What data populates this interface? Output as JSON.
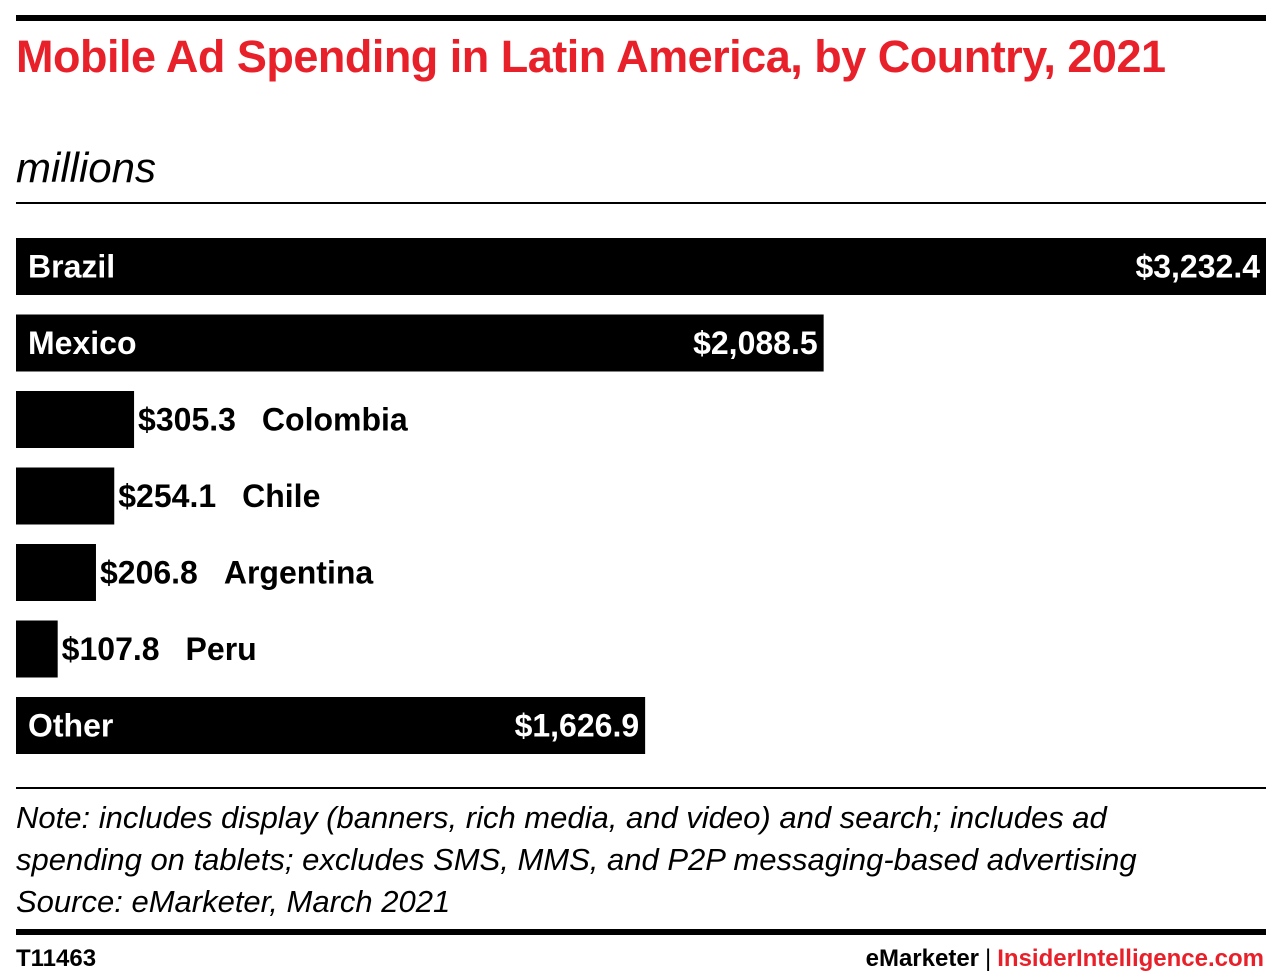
{
  "header": {
    "title": "Mobile Ad Spending in Latin America, by Country, 2021",
    "subtitle": "millions"
  },
  "chart_data": {
    "type": "bar",
    "orientation": "horizontal",
    "categories": [
      "Brazil",
      "Mexico",
      "Colombia",
      "Chile",
      "Argentina",
      "Peru",
      "Other"
    ],
    "values": [
      3232.4,
      2088.5,
      305.3,
      254.1,
      206.8,
      107.8,
      1626.9
    ],
    "value_labels": [
      "$3,232.4",
      "$2,088.5",
      "$305.3",
      "$254.1",
      "$206.8",
      "$107.8",
      "$1,626.9"
    ],
    "unit": "millions",
    "bar_color": "#000000",
    "grid": false,
    "legend": "none"
  },
  "footer": {
    "note_lines": [
      "Note: includes display (banners, rich media, and video) and search; includes ad",
      "spending on tablets; excludes SMS, MMS, and P2P messaging-based advertising"
    ],
    "source": "Source: eMarketer, March 2021",
    "chart_id": "T11463",
    "brand_primary": "eMarketer",
    "brand_separator": "|",
    "brand_secondary": "InsiderIntelligence.com",
    "accent_color": "#e8202a"
  }
}
